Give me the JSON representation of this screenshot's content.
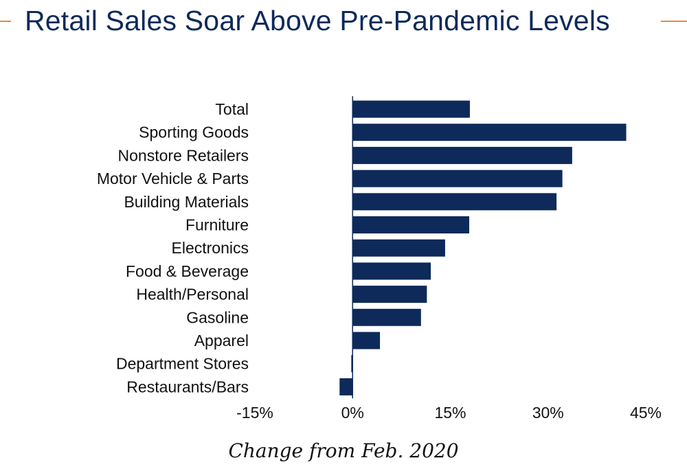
{
  "colors": {
    "bar": "#0d2a5a",
    "title": "#0d2a5a",
    "accent": "#e8893a"
  },
  "chart_data": {
    "type": "bar",
    "orientation": "horizontal",
    "title": "Retail Sales Soar Above Pre-Pandemic Levels",
    "xlabel": "Change from Feb. 2020",
    "ylabel": "",
    "xlim": [
      -15,
      45
    ],
    "xticks": [
      -15,
      0,
      15,
      30,
      45
    ],
    "tick_labels": [
      "-15%",
      "0%",
      "15%",
      "30%",
      "45%"
    ],
    "grid": false,
    "categories": [
      "Total",
      "Sporting Goods",
      "Nonstore Retailers",
      "Motor Vehicle & Parts",
      "Building Materials",
      "Furniture",
      "Electronics",
      "Food & Beverage",
      "Health/Personal",
      "Gasoline",
      "Apparel",
      "Department Stores",
      "Restaurants/Bars"
    ],
    "values": [
      18.0,
      42.0,
      33.7,
      32.2,
      31.3,
      17.9,
      14.2,
      12.0,
      11.4,
      10.5,
      4.2,
      -0.2,
      -2.0
    ]
  }
}
